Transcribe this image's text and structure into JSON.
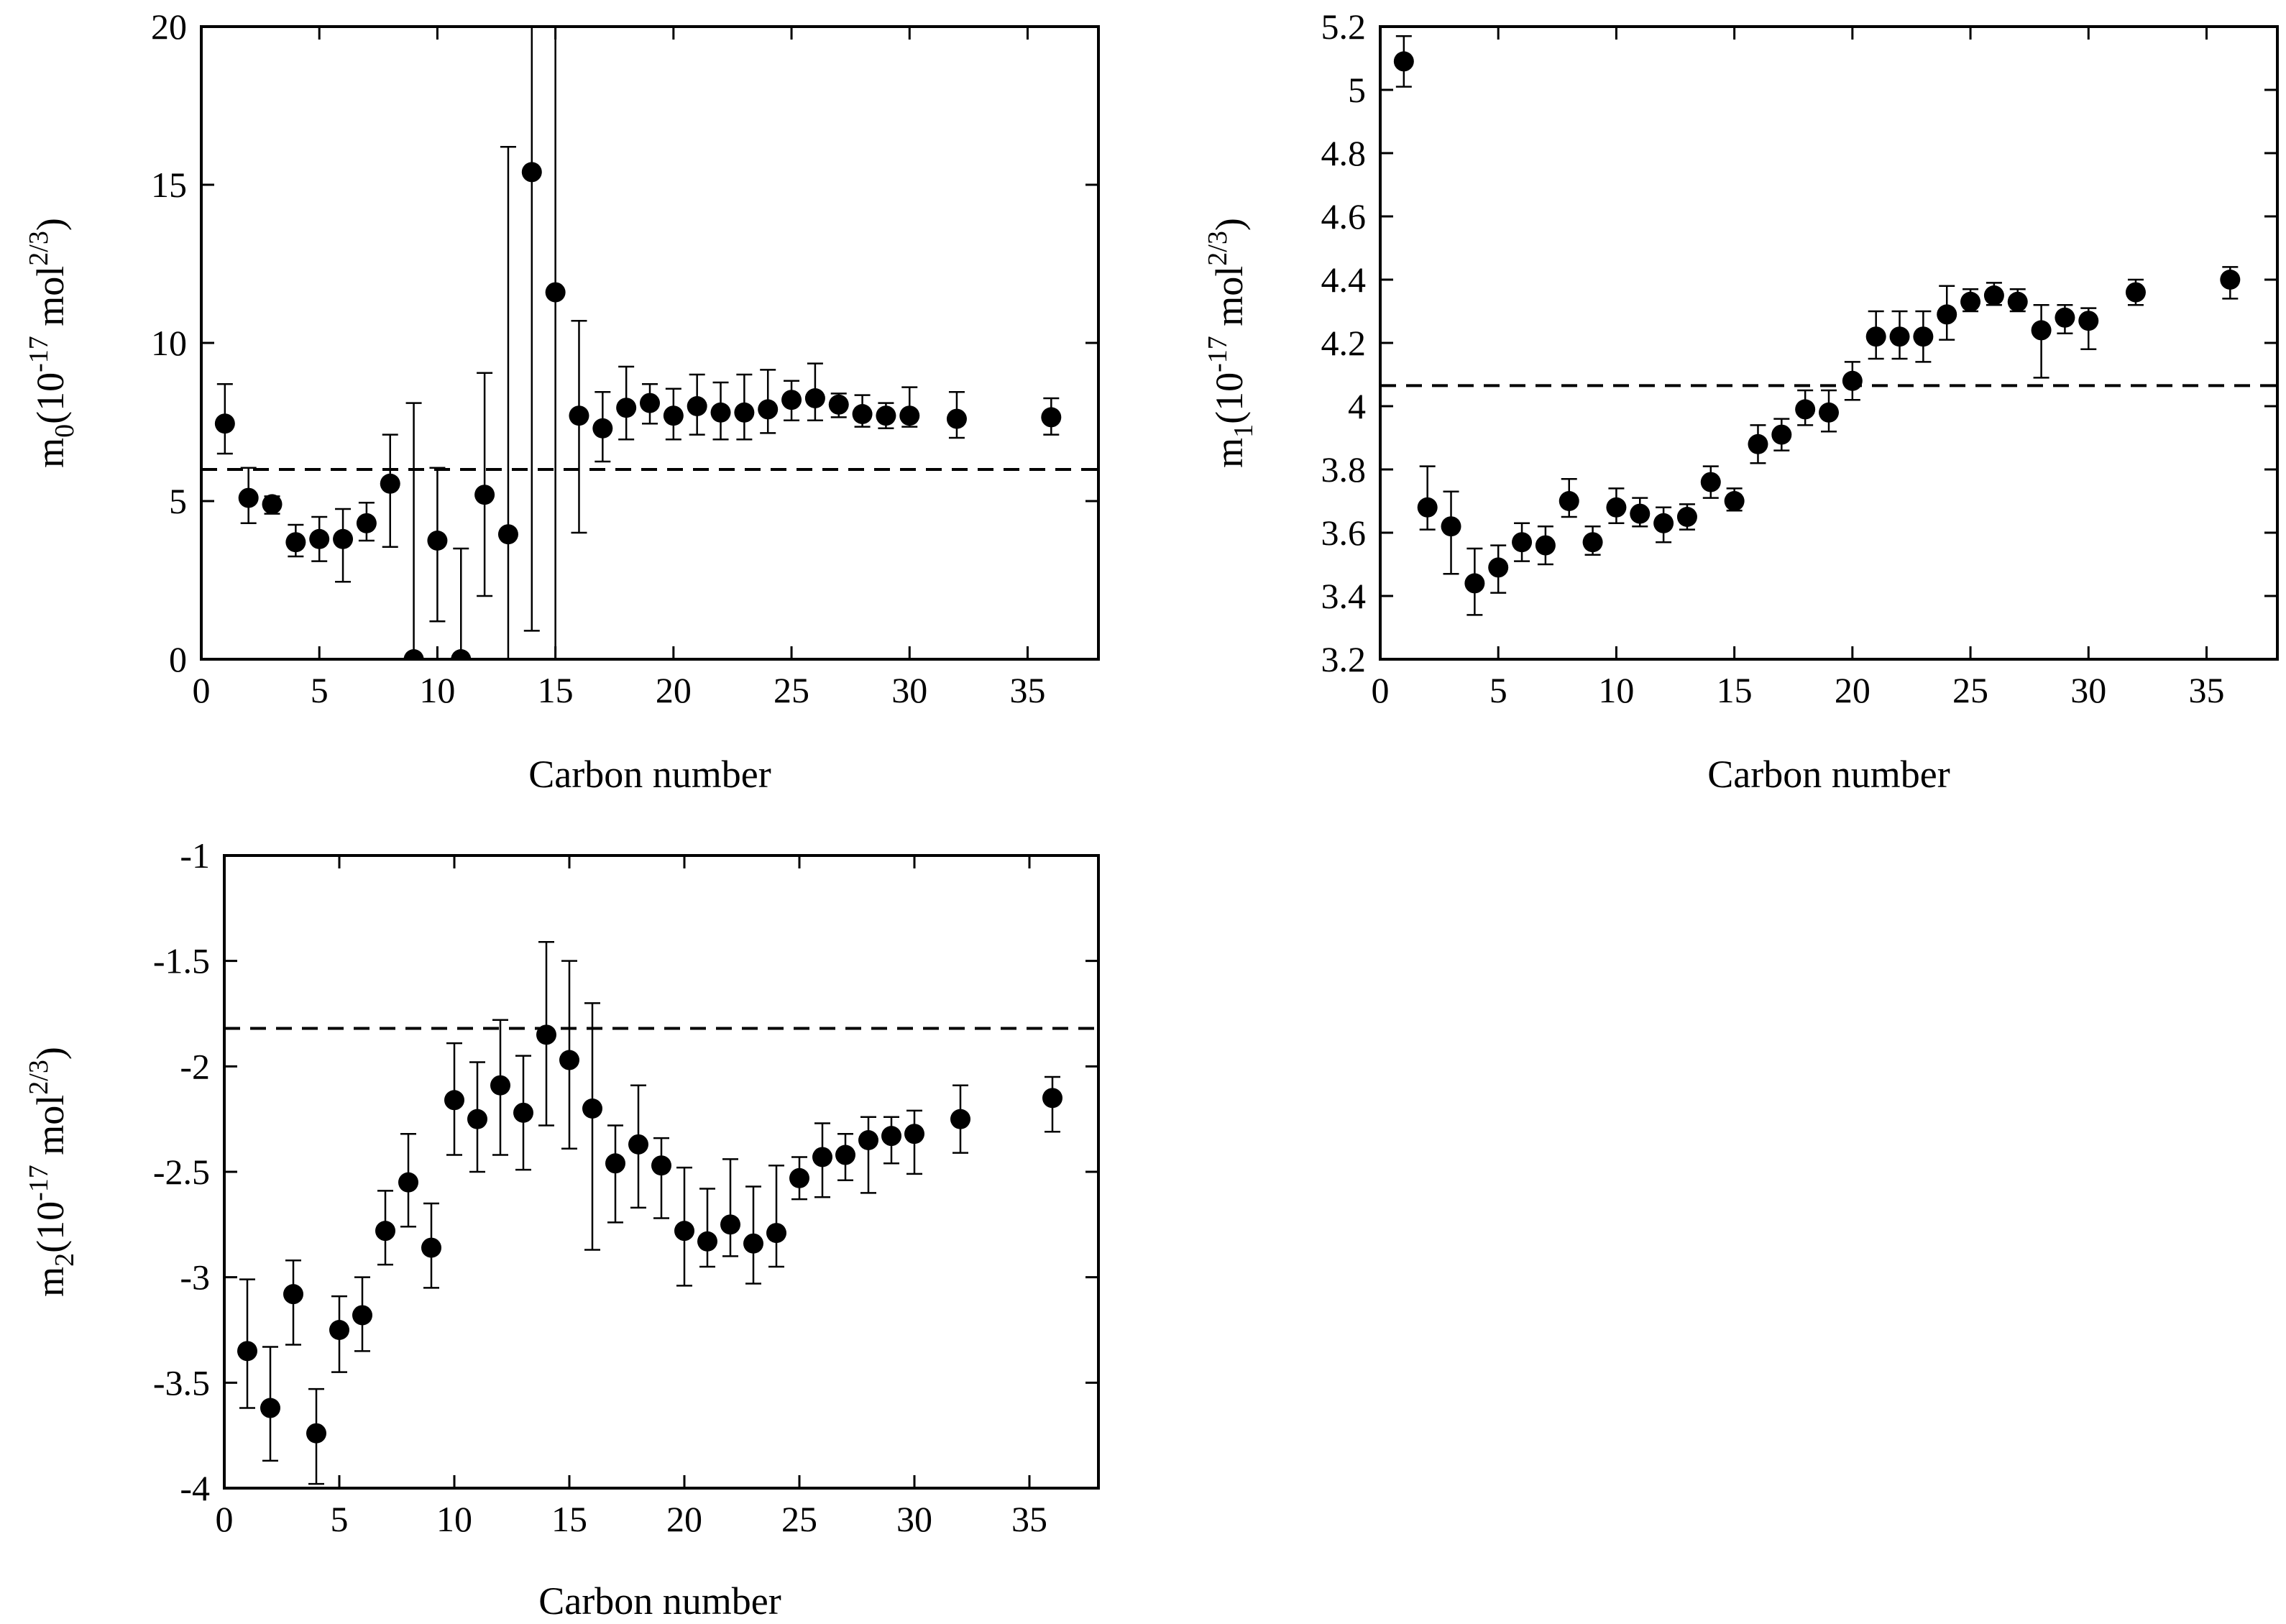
{
  "chart_data": [
    {
      "type": "scatter",
      "id": "m0",
      "xlabel": "Carbon number",
      "ylabel": {
        "base": "m",
        "sub": "0",
        "pre": "(10",
        "exp": "-17",
        "mid": " mol",
        "exp2": "2/3",
        "post": ")"
      },
      "xlim": [
        0,
        38
      ],
      "ylim": [
        0,
        20
      ],
      "xticks": [
        0,
        5,
        10,
        15,
        20,
        25,
        30,
        35
      ],
      "yticks": [
        0,
        5,
        10,
        15,
        20
      ],
      "xtick_labels": [
        "0",
        "5",
        "10",
        "15",
        "20",
        "25",
        "30",
        "35"
      ],
      "ytick_labels": [
        "0",
        "5",
        "10",
        "15",
        "20"
      ],
      "reference_line": 6.0,
      "series": [
        {
          "name": "m0",
          "x": [
            1,
            2,
            3,
            4,
            5,
            6,
            7,
            8,
            9,
            10,
            11,
            12,
            13,
            14,
            15,
            16,
            17,
            18,
            19,
            20,
            21,
            22,
            23,
            24,
            25,
            26,
            27,
            28,
            29,
            30,
            32,
            36
          ],
          "y": [
            7.45,
            5.1,
            4.9,
            3.7,
            3.8,
            3.8,
            4.3,
            5.55,
            0.0,
            3.75,
            0.0,
            5.2,
            3.95,
            15.4,
            11.6,
            7.7,
            7.3,
            7.95,
            8.1,
            7.7,
            8.0,
            7.8,
            7.8,
            7.9,
            8.2,
            8.25,
            8.05,
            7.75,
            7.7,
            7.7,
            7.6,
            7.65
          ],
          "yerr_low": [
            6.5,
            4.3,
            4.6,
            3.25,
            3.1,
            2.45,
            3.75,
            3.55,
            -1.0,
            1.2,
            -1.0,
            2.0,
            -1.0,
            0.9,
            -1.0,
            4.0,
            6.25,
            6.95,
            7.45,
            6.95,
            7.1,
            6.95,
            6.95,
            7.15,
            7.55,
            7.55,
            7.65,
            7.35,
            7.3,
            7.35,
            7.0,
            7.1
          ],
          "yerr_high": [
            8.7,
            6.05,
            5.15,
            4.25,
            4.5,
            4.75,
            4.95,
            7.1,
            8.1,
            6.05,
            3.5,
            9.05,
            16.2,
            22.0,
            22.0,
            10.7,
            8.45,
            9.25,
            8.7,
            8.55,
            9.0,
            8.75,
            9.0,
            9.15,
            8.8,
            9.35,
            8.4,
            8.35,
            8.1,
            8.6,
            8.45,
            8.25
          ]
        }
      ]
    },
    {
      "type": "scatter",
      "id": "m1",
      "xlabel": "Carbon number",
      "ylabel": {
        "base": "m",
        "sub": "1",
        "pre": "(10",
        "exp": "-17",
        "mid": " mol",
        "exp2": "2/3",
        "post": ")"
      },
      "xlim": [
        0,
        38
      ],
      "ylim": [
        3.2,
        5.2
      ],
      "xticks": [
        0,
        5,
        10,
        15,
        20,
        25,
        30,
        35
      ],
      "yticks": [
        3.2,
        3.4,
        3.6,
        3.8,
        4.0,
        4.2,
        4.4,
        4.6,
        4.8,
        5.0,
        5.2
      ],
      "xtick_labels": [
        "0",
        "5",
        "10",
        "15",
        "20",
        "25",
        "30",
        "35"
      ],
      "ytick_labels": [
        "3.2",
        "3.4",
        "3.6",
        "3.8",
        "4",
        "4.2",
        "4.4",
        "4.6",
        "4.8",
        "5",
        "5.2"
      ],
      "reference_line": 4.065,
      "series": [
        {
          "name": "m1",
          "x": [
            1,
            2,
            3,
            4,
            5,
            6,
            7,
            8,
            9,
            10,
            11,
            12,
            13,
            14,
            15,
            16,
            17,
            18,
            19,
            20,
            21,
            22,
            23,
            24,
            25,
            26,
            27,
            28,
            29,
            30,
            32,
            36
          ],
          "y": [
            5.09,
            3.68,
            3.62,
            3.44,
            3.49,
            3.57,
            3.56,
            3.7,
            3.57,
            3.68,
            3.66,
            3.63,
            3.65,
            3.76,
            3.7,
            3.88,
            3.91,
            3.99,
            3.98,
            4.08,
            4.22,
            4.22,
            4.22,
            4.29,
            4.33,
            4.35,
            4.33,
            4.24,
            4.28,
            4.27,
            4.36,
            4.4
          ],
          "yerr_low": [
            5.01,
            3.61,
            3.47,
            3.34,
            3.41,
            3.51,
            3.5,
            3.65,
            3.53,
            3.63,
            3.62,
            3.57,
            3.61,
            3.71,
            3.67,
            3.82,
            3.86,
            3.94,
            3.92,
            4.02,
            4.15,
            4.15,
            4.14,
            4.21,
            4.3,
            4.32,
            4.3,
            4.09,
            4.23,
            4.18,
            4.32,
            4.34
          ],
          "yerr_high": [
            5.17,
            3.81,
            3.73,
            3.55,
            3.56,
            3.63,
            3.62,
            3.77,
            3.62,
            3.74,
            3.71,
            3.68,
            3.69,
            3.81,
            3.74,
            3.94,
            3.96,
            4.05,
            4.05,
            4.14,
            4.3,
            4.3,
            4.3,
            4.38,
            4.37,
            4.39,
            4.37,
            4.32,
            4.32,
            4.31,
            4.4,
            4.44
          ]
        }
      ]
    },
    {
      "type": "scatter",
      "id": "m2",
      "xlabel": "Carbon number",
      "ylabel": {
        "base": "m",
        "sub": "2",
        "pre": "(10",
        "exp": "-17",
        "mid": " mol",
        "exp2": "2/3",
        "post": ")"
      },
      "xlim": [
        0,
        38
      ],
      "ylim": [
        -4,
        -1
      ],
      "xticks": [
        0,
        5,
        10,
        15,
        20,
        25,
        30,
        35
      ],
      "yticks": [
        -4,
        -3.5,
        -3,
        -2.5,
        -2,
        -1.5,
        -1
      ],
      "xtick_labels": [
        "0",
        "5",
        "10",
        "15",
        "20",
        "25",
        "30",
        "35"
      ],
      "ytick_labels": [
        "-4",
        "-3.5",
        "-3",
        "-2.5",
        "-2",
        "-1.5",
        "-1"
      ],
      "reference_line": -1.82,
      "series": [
        {
          "name": "m2",
          "x": [
            1,
            2,
            3,
            4,
            5,
            6,
            7,
            8,
            9,
            10,
            11,
            12,
            13,
            14,
            15,
            16,
            17,
            18,
            19,
            20,
            21,
            22,
            23,
            24,
            25,
            26,
            27,
            28,
            29,
            30,
            32,
            36
          ],
          "y": [
            -3.35,
            -3.62,
            -3.08,
            -3.74,
            -3.25,
            -3.18,
            -2.78,
            -2.55,
            -2.86,
            -2.16,
            -2.25,
            -2.09,
            -2.22,
            -1.85,
            -1.97,
            -2.2,
            -2.46,
            -2.37,
            -2.47,
            -2.78,
            -2.83,
            -2.75,
            -2.84,
            -2.79,
            -2.53,
            -2.43,
            -2.42,
            -2.35,
            -2.33,
            -2.32,
            -2.25,
            -2.15
          ],
          "yerr_low": [
            -3.62,
            -3.87,
            -3.32,
            -3.98,
            -3.45,
            -3.35,
            -2.94,
            -2.76,
            -3.05,
            -2.42,
            -2.5,
            -2.42,
            -2.49,
            -2.28,
            -2.39,
            -2.87,
            -2.74,
            -2.67,
            -2.72,
            -3.04,
            -2.95,
            -2.9,
            -3.03,
            -2.95,
            -2.63,
            -2.62,
            -2.54,
            -2.6,
            -2.46,
            -2.51,
            -2.41,
            -2.31
          ],
          "yerr_high": [
            -3.01,
            -3.33,
            -2.92,
            -3.53,
            -3.09,
            -3.0,
            -2.59,
            -2.32,
            -2.65,
            -1.89,
            -1.98,
            -1.78,
            -1.95,
            -1.41,
            -1.5,
            -1.7,
            -2.28,
            -2.09,
            -2.34,
            -2.48,
            -2.58,
            -2.44,
            -2.57,
            -2.47,
            -2.43,
            -2.27,
            -2.32,
            -2.24,
            -2.24,
            -2.21,
            -2.09,
            -2.05
          ]
        }
      ]
    }
  ]
}
